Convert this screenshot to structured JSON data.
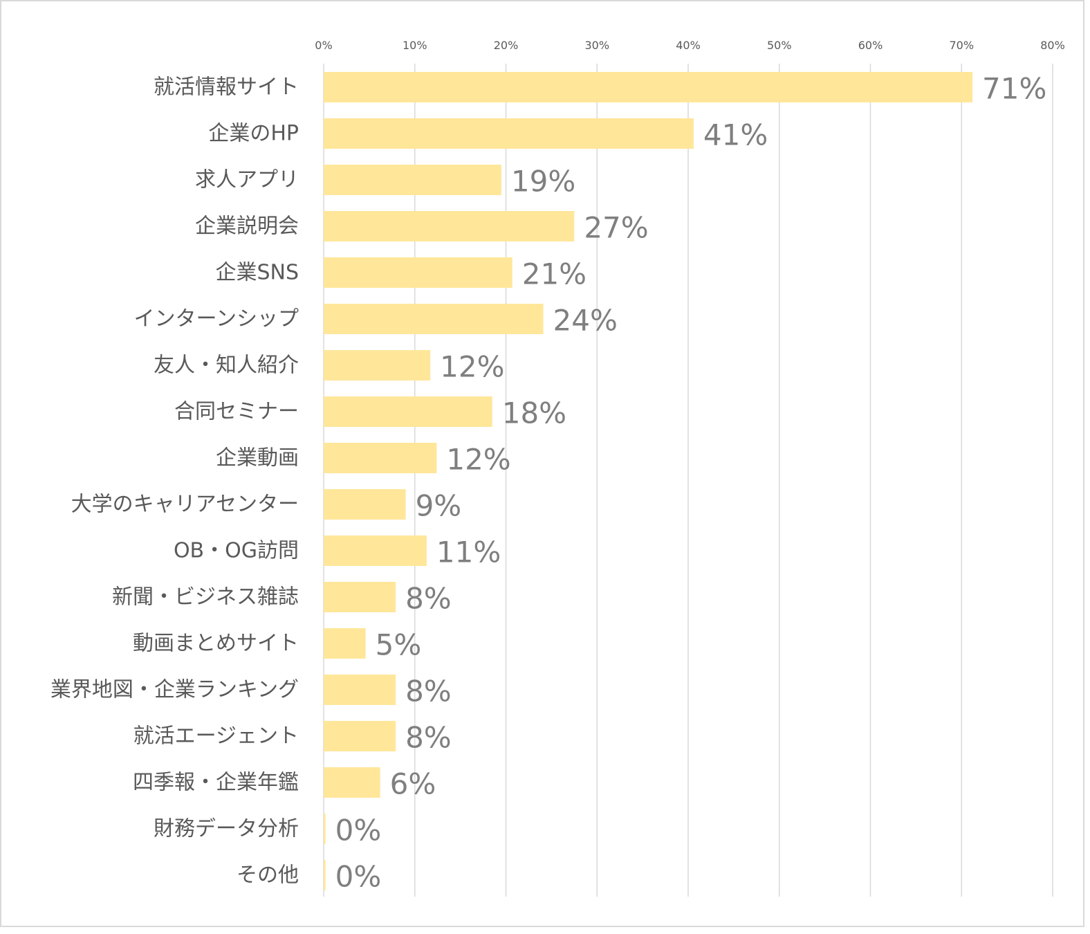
{
  "chart_data": {
    "type": "bar",
    "orientation": "horizontal",
    "title": "",
    "xlabel": "",
    "ylabel": "",
    "xlim": [
      0,
      80
    ],
    "x_ticks": [
      "0%",
      "10%",
      "20%",
      "30%",
      "40%",
      "50%",
      "60%",
      "70%",
      "80%"
    ],
    "x_tick_values": [
      0,
      10,
      20,
      30,
      40,
      50,
      60,
      70,
      80
    ],
    "x_axis_position": "top",
    "grid": true,
    "legend": "none",
    "bar_color": "#FFE699",
    "categories": [
      "就活情報サイト",
      "企業のHP",
      "求人アプリ",
      "企業説明会",
      "企業SNS",
      "インターンシップ",
      "友人・知人紹介",
      "合同セミナー",
      "企業動画",
      "大学のキャリアセンター",
      "OB・OG訪問",
      "新聞・ビジネス雑誌",
      "動画まとめサイト",
      "業界地図・企業ランキング",
      "就活エージェント",
      "四季報・企業年鑑",
      "財務データ分析",
      "その他"
    ],
    "values": [
      71.2,
      40.6,
      19.5,
      27.5,
      20.7,
      24.1,
      11.7,
      18.5,
      12.4,
      9.0,
      11.3,
      7.9,
      4.6,
      7.9,
      7.9,
      6.2,
      0.2,
      0.2
    ],
    "value_labels": [
      "71%",
      "41%",
      "19%",
      "27%",
      "21%",
      "24%",
      "12%",
      "18%",
      "12%",
      "9%",
      "11%",
      "8%",
      "5%",
      "8%",
      "8%",
      "6%",
      "0%",
      "0%"
    ]
  }
}
